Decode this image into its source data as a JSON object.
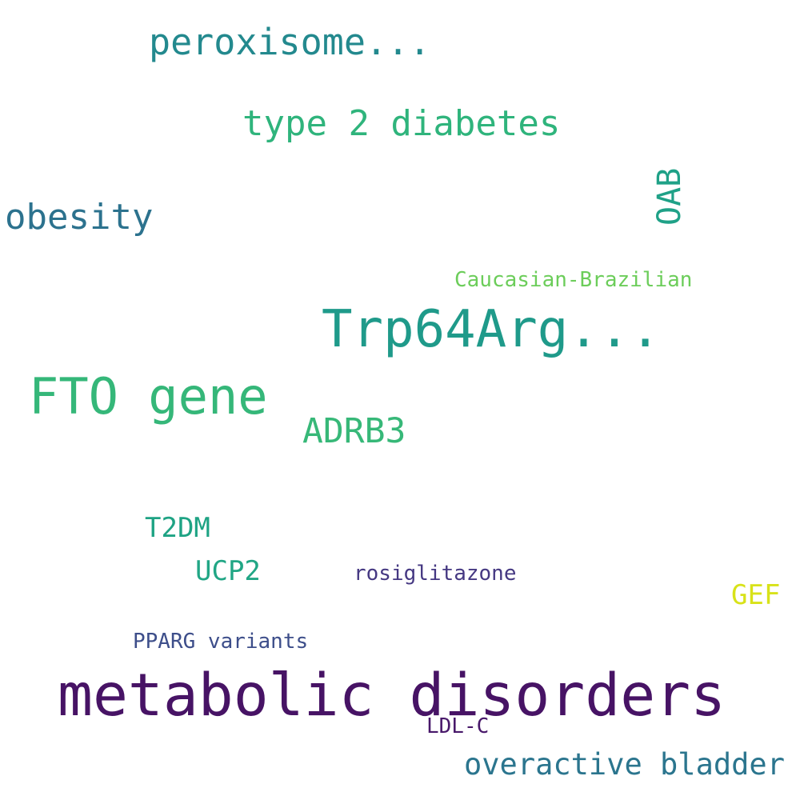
{
  "words": [
    {
      "text": "peroxisome...",
      "color": "#23898e"
    },
    {
      "text": "type 2 diabetes",
      "color": "#2fb47c"
    },
    {
      "text": "obesity",
      "color": "#2c728e"
    },
    {
      "text": "OAB",
      "color": "#1fa187"
    },
    {
      "text": "Caucasian-Brazilian",
      "color": "#6ccd5a"
    },
    {
      "text": "Trp64Arg...",
      "color": "#1f9a8a"
    },
    {
      "text": "FTO gene",
      "color": "#35b779"
    },
    {
      "text": "ADRB3",
      "color": "#37b878"
    },
    {
      "text": "T2DM",
      "color": "#1ea384"
    },
    {
      "text": "UCP2",
      "color": "#21a685"
    },
    {
      "text": "rosiglitazone",
      "color": "#453882"
    },
    {
      "text": "GEF",
      "color": "#d8e219"
    },
    {
      "text": "PPARG variants",
      "color": "#3d4e8a"
    },
    {
      "text": "metabolic disorders",
      "color": "#471365"
    },
    {
      "text": "LDL-C",
      "color": "#48186a"
    },
    {
      "text": "overactive bladder",
      "color": "#2b758e"
    }
  ]
}
